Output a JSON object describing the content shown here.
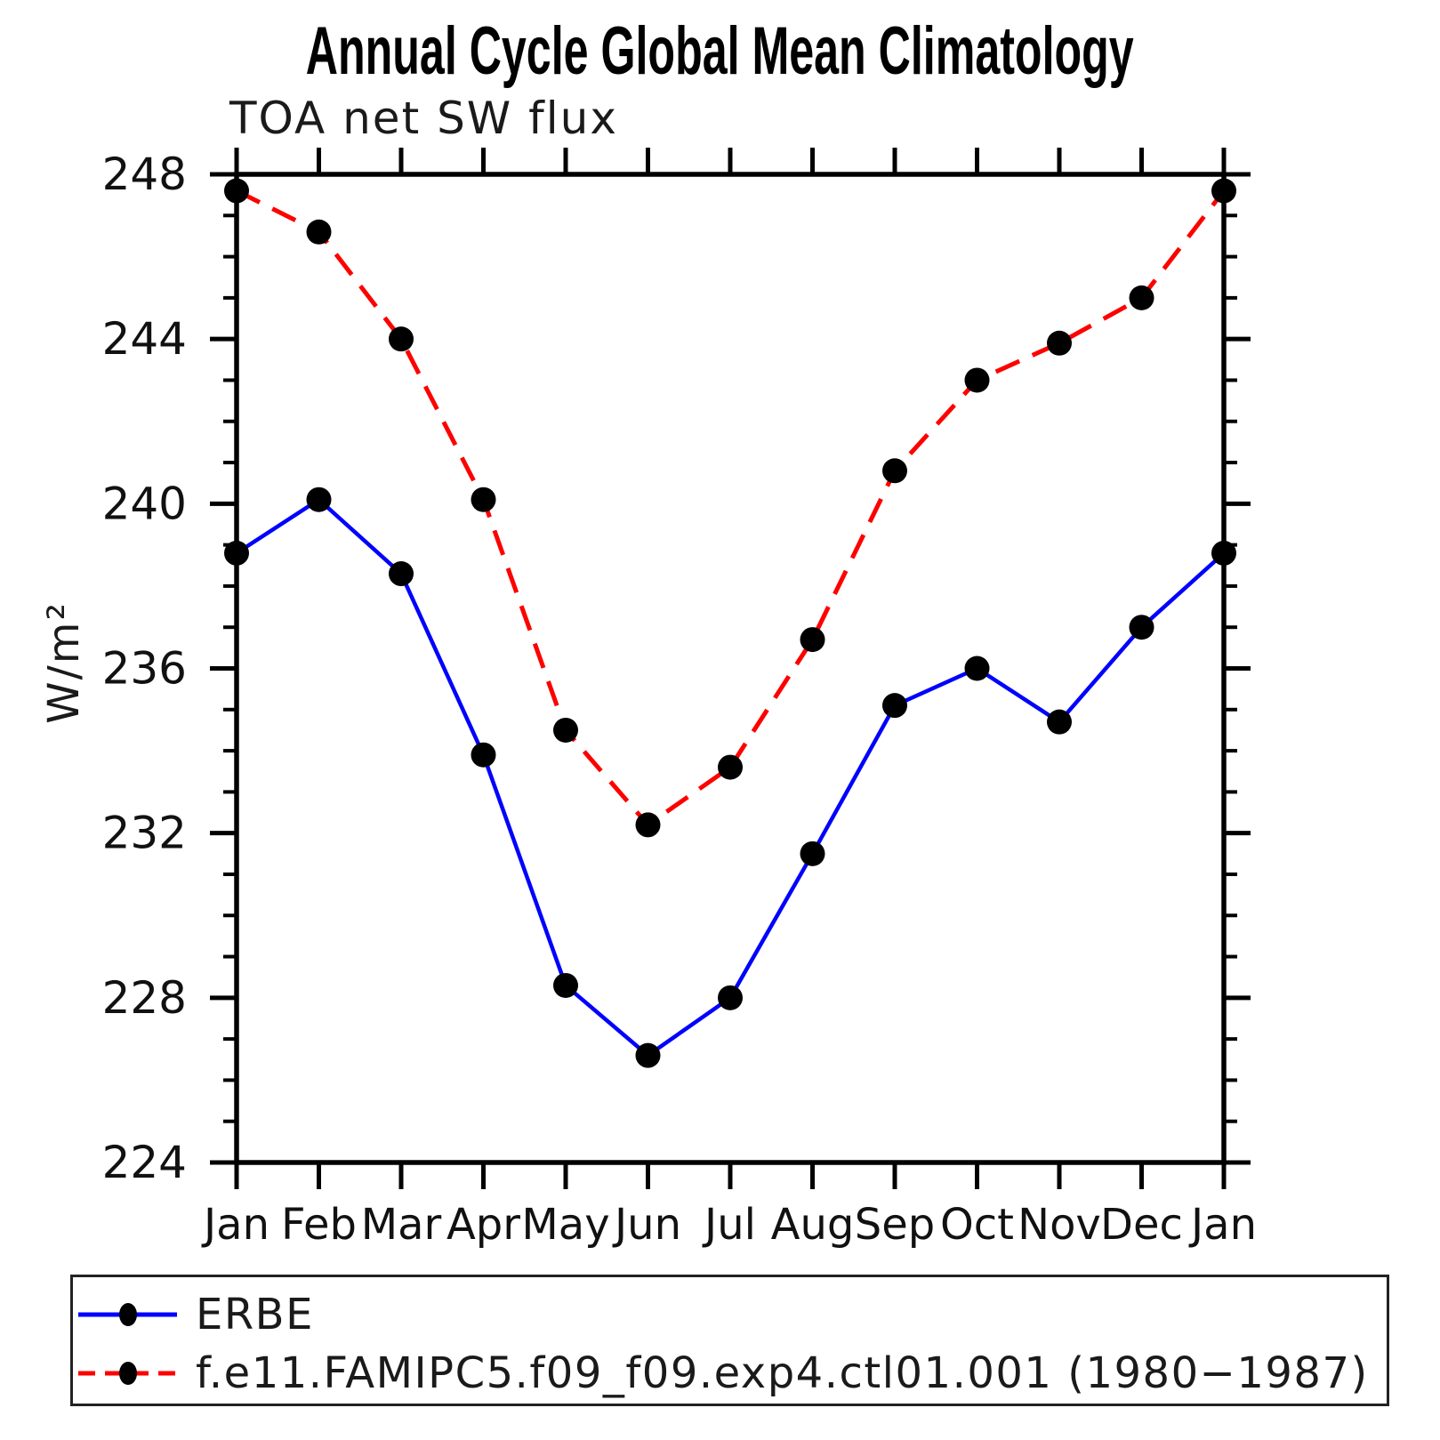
{
  "header": {
    "title": "Annual Cycle Global Mean Climatology",
    "subtitle": "TOA net SW flux"
  },
  "chart_data": {
    "type": "line",
    "title": "Annual Cycle Global Mean Climatology",
    "subtitle": "TOA net SW flux",
    "xlabel": "",
    "ylabel": "W/m²",
    "x_categories": [
      "Jan",
      "Feb",
      "Mar",
      "Apr",
      "May",
      "Jun",
      "Jul",
      "Aug",
      "Sep",
      "Oct",
      "Nov",
      "Dec",
      "Jan"
    ],
    "ylim": [
      224,
      248
    ],
    "y_major_step": 4,
    "y_minor_step": 1,
    "y_major_labels": [
      "224",
      "228",
      "232",
      "236",
      "240",
      "244",
      "248"
    ],
    "grid": false,
    "legend_position": "bottom-left-box",
    "marker_color": "#000000",
    "series": [
      {
        "name": "ERBE",
        "color": "#0000ff",
        "style": "solid",
        "values": [
          238.8,
          240.1,
          238.3,
          233.9,
          228.3,
          226.6,
          228.0,
          231.5,
          235.1,
          236.0,
          234.7,
          237.0,
          238.8
        ]
      },
      {
        "name": "f.e11.FAMIPC5.f09_f09.exp4.ctl01.001 (1980−1987)",
        "color": "#ff0000",
        "style": "dashed",
        "values": [
          247.6,
          246.6,
          244.0,
          240.1,
          234.5,
          232.2,
          233.6,
          236.7,
          240.8,
          243.0,
          243.9,
          245.0,
          247.6
        ]
      }
    ]
  }
}
